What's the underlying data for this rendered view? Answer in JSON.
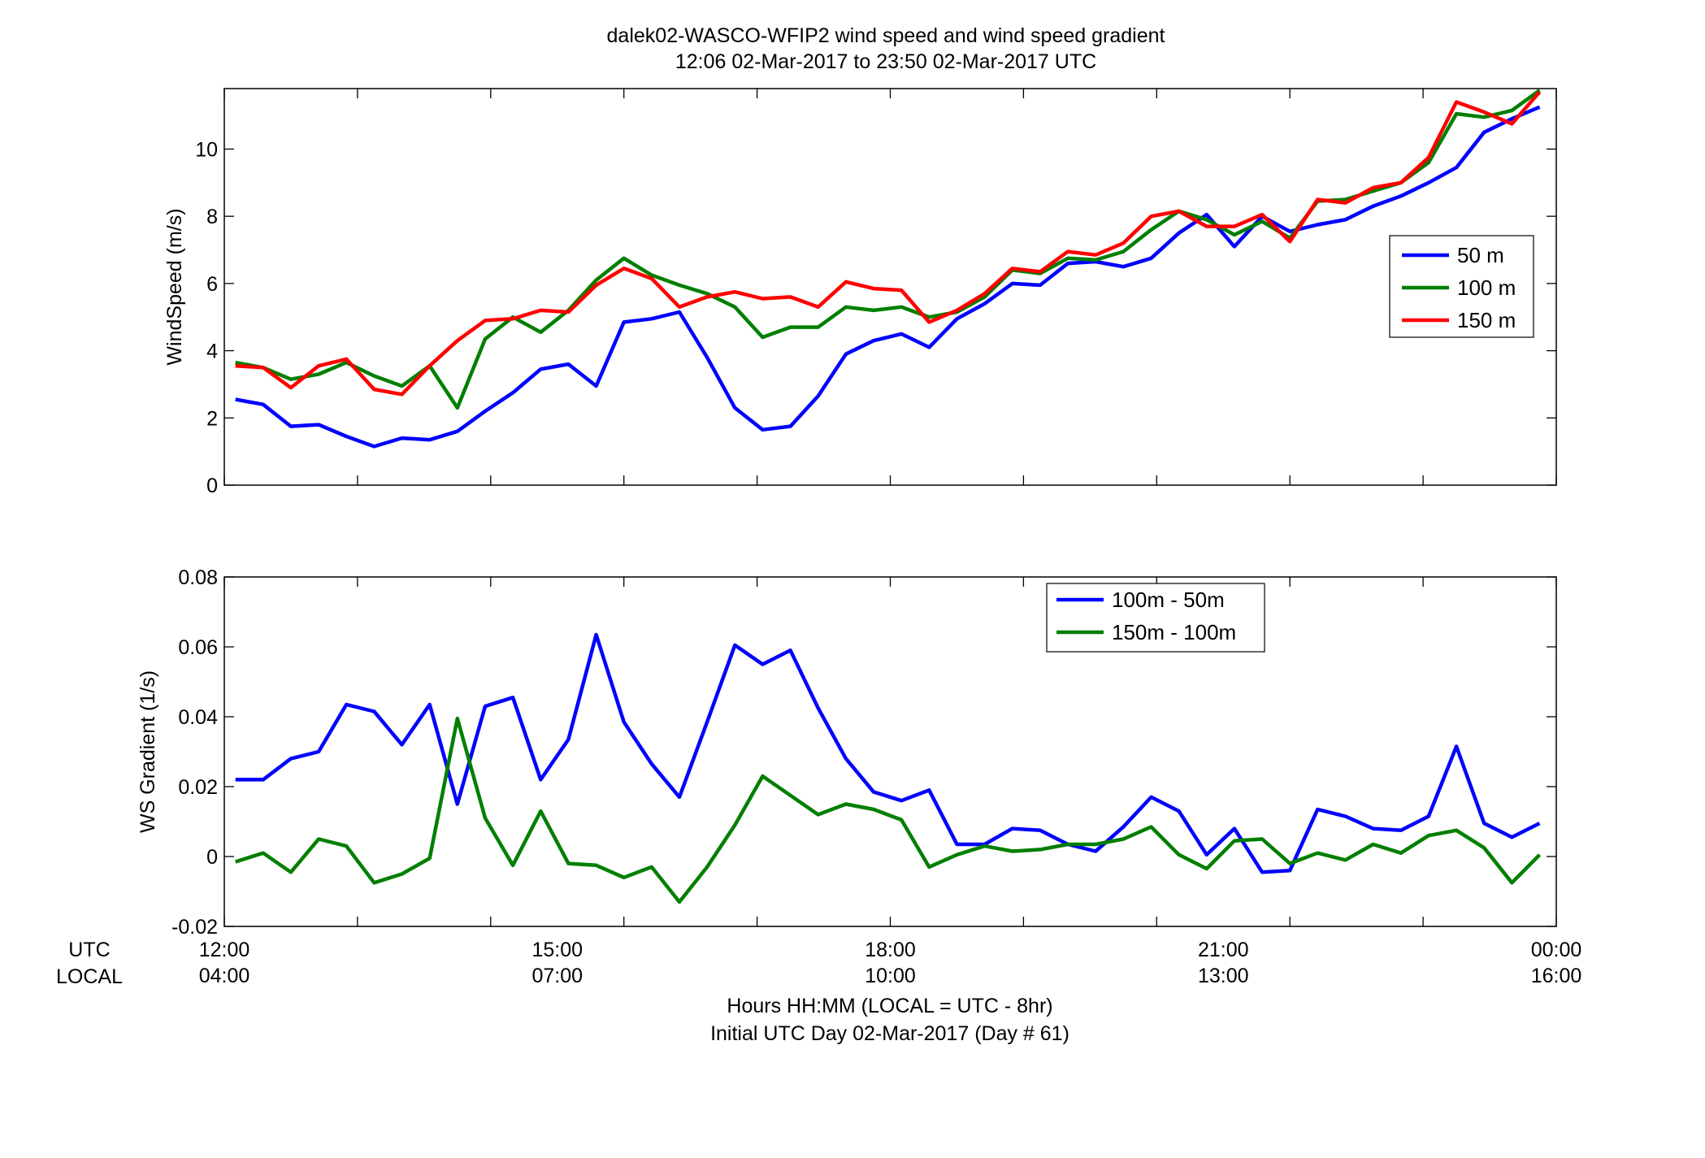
{
  "figure": {
    "title_line1": "dalek02-WASCO-WFIP2  wind speed and wind speed gradient",
    "title_line2": "12:06 02-Mar-2017 to 23:50 02-Mar-2017  UTC",
    "row_label_utc": "UTC",
    "row_label_local": "LOCAL",
    "xlabel_line1": "Hours HH:MM  (LOCAL = UTC - 8hr)",
    "xlabel_line2": "Initial UTC Day 02-Mar-2017 (Day # 61)",
    "utc_ticks": [
      "12:00",
      "15:00",
      "18:00",
      "21:00",
      "00:00"
    ],
    "local_ticks": [
      "04:00",
      "07:00",
      "10:00",
      "13:00",
      "16:00"
    ]
  },
  "chart_data": [
    {
      "type": "line",
      "xlabel": "",
      "ylabel": "WindSpeed (m/s)",
      "xlim": [
        12,
        24
      ],
      "ylim": [
        0,
        11.8
      ],
      "yticks": [
        0,
        2,
        4,
        6,
        8,
        10
      ],
      "yticklabels": [
        "0",
        "2",
        "4",
        "6",
        "8",
        "10"
      ],
      "xticks": [
        12,
        13.2,
        14.4,
        15.6,
        16.8,
        18,
        19.2,
        20.4,
        21.6,
        22.8,
        24
      ],
      "grid": false,
      "legend": "right",
      "x_start": 12.1,
      "x_step": 0.25,
      "series": [
        {
          "name": "50 m",
          "color": "#0000ff",
          "values": [
            2.55,
            2.4,
            1.75,
            1.8,
            1.45,
            1.15,
            1.4,
            1.35,
            1.6,
            2.2,
            2.75,
            3.45,
            3.6,
            2.95,
            4.85,
            4.95,
            5.15,
            3.8,
            2.3,
            1.65,
            1.75,
            2.65,
            3.9,
            4.3,
            4.5,
            4.1,
            4.95,
            5.4,
            6.0,
            5.95,
            6.6,
            6.65,
            6.5,
            6.75,
            7.5,
            8.05,
            7.1,
            8.0,
            7.55,
            7.75,
            7.9,
            8.3,
            8.6,
            9.0,
            9.45,
            10.5,
            10.9,
            11.25
          ]
        },
        {
          "name": "100 m",
          "color": "#007f00",
          "values": [
            3.65,
            3.5,
            3.15,
            3.3,
            3.65,
            3.25,
            2.95,
            3.55,
            2.3,
            4.35,
            5.0,
            4.55,
            5.2,
            6.1,
            6.75,
            6.25,
            5.95,
            5.7,
            5.3,
            4.4,
            4.7,
            4.7,
            5.3,
            5.2,
            5.3,
            5.0,
            5.15,
            5.6,
            6.4,
            6.3,
            6.75,
            6.7,
            6.95,
            7.6,
            8.15,
            7.9,
            7.45,
            7.85,
            7.35,
            8.45,
            8.5,
            8.75,
            9.0,
            9.6,
            11.05,
            10.95,
            11.15,
            11.75
          ]
        },
        {
          "name": "150 m",
          "color": "#ff0000",
          "values": [
            3.55,
            3.5,
            2.9,
            3.55,
            3.75,
            2.85,
            2.7,
            3.55,
            4.3,
            4.9,
            4.95,
            5.2,
            5.15,
            5.95,
            6.45,
            6.15,
            5.3,
            5.6,
            5.75,
            5.55,
            5.6,
            5.3,
            6.05,
            5.85,
            5.8,
            4.85,
            5.2,
            5.7,
            6.45,
            6.35,
            6.95,
            6.85,
            7.2,
            8.0,
            8.15,
            7.7,
            7.7,
            8.05,
            7.25,
            8.5,
            8.4,
            8.85,
            9.0,
            9.75,
            11.4,
            11.1,
            10.75,
            11.7
          ]
        }
      ]
    },
    {
      "type": "line",
      "xlabel": "",
      "ylabel": "WS Gradient (1/s)",
      "xlim": [
        12,
        24
      ],
      "ylim": [
        -0.02,
        0.08
      ],
      "yticks": [
        -0.02,
        0,
        0.02,
        0.04,
        0.06,
        0.08
      ],
      "yticklabels": [
        "-0.02",
        "0",
        "0.02",
        "0.04",
        "0.06",
        "0.08"
      ],
      "xticks": [
        12,
        13.2,
        14.4,
        15.6,
        16.8,
        18,
        19.2,
        20.4,
        21.6,
        22.8,
        24
      ],
      "grid": false,
      "legend": "top-center",
      "x_start": 12.1,
      "x_step": 0.25,
      "series": [
        {
          "name": "100m - 50m",
          "color": "#0000ff",
          "values": [
            0.022,
            0.022,
            0.028,
            0.03,
            0.0435,
            0.0415,
            0.032,
            0.0435,
            0.015,
            0.043,
            0.0455,
            0.022,
            0.0335,
            0.0635,
            0.0385,
            0.0265,
            0.017,
            0.0385,
            0.0605,
            0.055,
            0.059,
            0.0425,
            0.028,
            0.0185,
            0.016,
            0.019,
            0.0035,
            0.0035,
            0.008,
            0.0075,
            0.0035,
            0.0015,
            0.0085,
            0.017,
            0.013,
            0.0005,
            0.008,
            -0.0045,
            -0.004,
            0.0135,
            0.0115,
            0.008,
            0.0075,
            0.0115,
            0.0315,
            0.0095,
            0.0055,
            0.0095
          ]
        },
        {
          "name": "150m - 100m",
          "color": "#007f00",
          "values": [
            -0.0015,
            0.001,
            -0.0045,
            0.005,
            0.003,
            -0.0075,
            -0.005,
            -0.0005,
            0.0395,
            0.011,
            -0.0025,
            0.013,
            -0.002,
            -0.0025,
            -0.006,
            -0.003,
            -0.013,
            -0.003,
            0.009,
            0.023,
            0.0175,
            0.012,
            0.015,
            0.0135,
            0.0105,
            -0.003,
            0.0005,
            0.003,
            0.0015,
            0.002,
            0.0035,
            0.0035,
            0.005,
            0.0085,
            0.0005,
            -0.0035,
            0.0045,
            0.005,
            -0.002,
            0.001,
            -0.001,
            0.0035,
            0.001,
            0.006,
            0.0075,
            0.0025,
            -0.0075,
            0.0005
          ]
        }
      ]
    }
  ]
}
